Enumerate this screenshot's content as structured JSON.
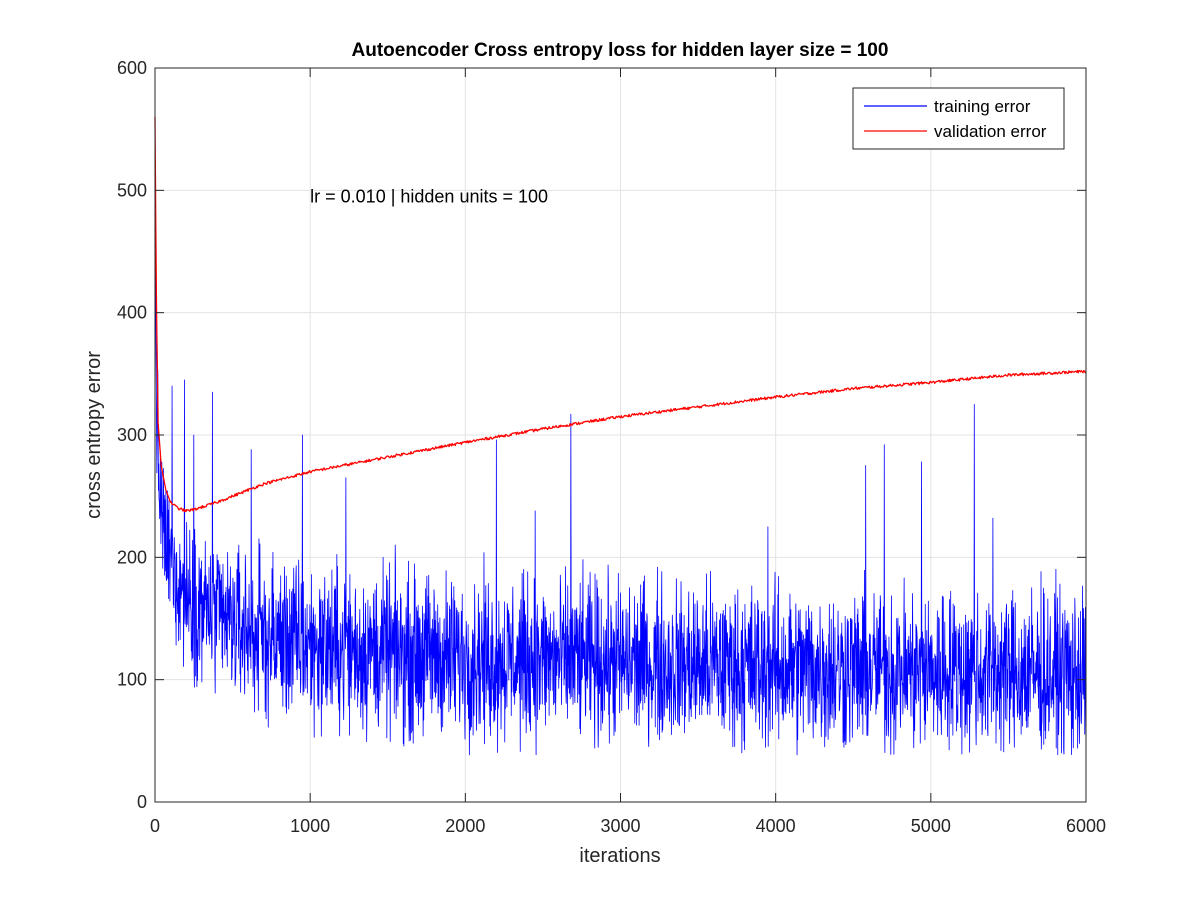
{
  "chart_data": {
    "type": "line",
    "title": "Autoencoder Cross entropy loss for hidden layer size = 100",
    "xlabel": "iterations",
    "ylabel": "cross entropy error",
    "xlim": [
      0,
      6000
    ],
    "ylim": [
      0,
      600
    ],
    "xticks": [
      0,
      1000,
      2000,
      3000,
      4000,
      5000,
      6000
    ],
    "xtick_labels": [
      "0",
      "1000",
      "2000",
      "3000",
      "4000",
      "5000",
      "6000"
    ],
    "yticks": [
      0,
      100,
      200,
      300,
      400,
      500,
      600
    ],
    "ytick_labels": [
      "0",
      "100",
      "200",
      "300",
      "400",
      "500",
      "600"
    ],
    "grid": true,
    "legend_position": "top-right",
    "annotation": {
      "text": "lr = 0.010 | hidden units = 100",
      "x": 1000,
      "y": 495
    },
    "series": [
      {
        "name": "training error",
        "color": "#0000ff",
        "noisy": true,
        "trend": {
          "x": [
            0,
            10,
            30,
            60,
            100,
            200,
            400,
            700,
            1000,
            1500,
            2000,
            3000,
            4000,
            5000,
            6000
          ],
          "y": [
            520,
            320,
            250,
            215,
            195,
            170,
            150,
            135,
            128,
            122,
            118,
            114,
            110,
            107,
            104
          ]
        },
        "noise_band": {
          "x": [
            0,
            100,
            300,
            1000,
            2000,
            6000
          ],
          "amplitude": [
            40,
            40,
            45,
            48,
            48,
            48
          ]
        },
        "spikes": {
          "x": [
            110,
            190,
            250,
            370,
            620,
            950,
            1230,
            2200,
            2450,
            2680,
            3950,
            4580,
            4700,
            4940,
            5280,
            5400
          ],
          "y": [
            340,
            345,
            300,
            335,
            288,
            300,
            265,
            296,
            238,
            317,
            225,
            275,
            292,
            278,
            325,
            232
          ]
        }
      },
      {
        "name": "validation error",
        "color": "#ff0000",
        "noisy": false,
        "x": [
          0,
          8,
          20,
          40,
          70,
          100,
          150,
          200,
          250,
          300,
          400,
          500,
          700,
          1000,
          1500,
          2000,
          2500,
          3000,
          3500,
          4000,
          4500,
          5000,
          5500,
          6000
        ],
        "y": [
          560,
          420,
          310,
          275,
          255,
          245,
          240,
          238,
          239,
          241,
          245,
          250,
          260,
          270,
          282,
          294,
          305,
          315,
          323,
          331,
          338,
          343,
          349,
          352
        ]
      }
    ]
  }
}
